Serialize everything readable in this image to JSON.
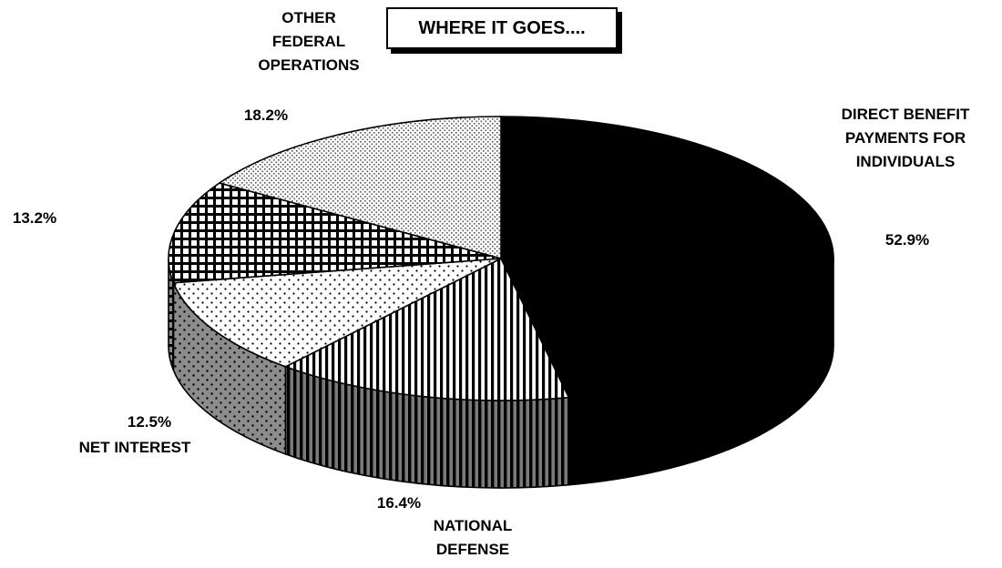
{
  "chart_data": {
    "type": "pie",
    "title": "WHERE IT GOES....",
    "slices": [
      {
        "label": "DIRECT BENEFIT PAYMENTS FOR INDIVIDUALS",
        "label_lines": [
          "DIRECT BENEFIT",
          "PAYMENTS FOR",
          "INDIVIDUALS"
        ],
        "value": 52.9,
        "value_label": "52.9%",
        "pattern": "solid"
      },
      {
        "label": "NATIONAL DEFENSE",
        "label_lines": [
          "NATIONAL",
          "DEFENSE"
        ],
        "value": 16.4,
        "value_label": "16.4%",
        "pattern": "vertical-stripes"
      },
      {
        "label": "NET INTEREST",
        "label_lines": [
          "NET INTEREST"
        ],
        "value": 12.5,
        "value_label": "12.5%",
        "pattern": "sparse-dots"
      },
      {
        "label": "",
        "label_lines": [],
        "value": 13.2,
        "value_label": "13.2%",
        "pattern": "crosshatch"
      },
      {
        "label": "OTHER FEDERAL OPERATIONS",
        "label_lines": [
          "OTHER",
          "FEDERAL",
          "OPERATIONS"
        ],
        "value": 18.2,
        "value_label": "18.2%",
        "pattern": "fine-dots"
      }
    ],
    "view": "3d-perspective",
    "legend": "none"
  }
}
